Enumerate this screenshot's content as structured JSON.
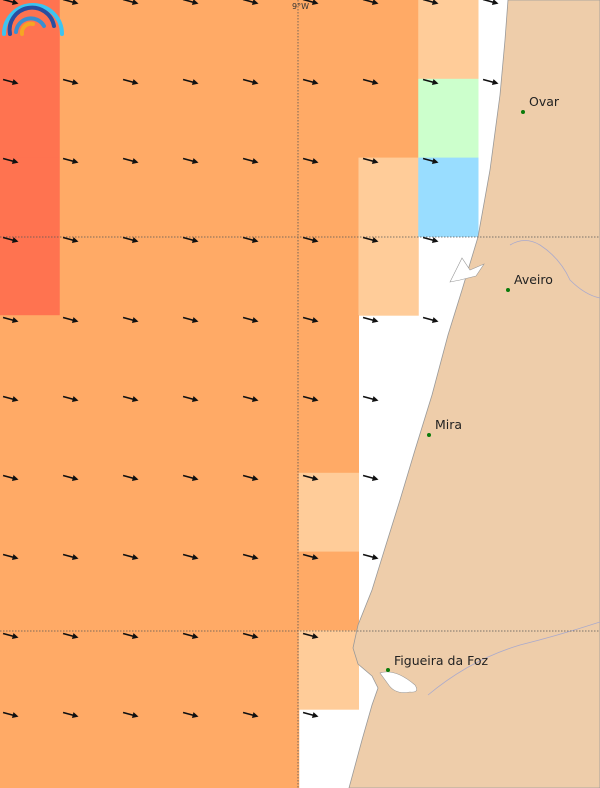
{
  "map": {
    "colors": {
      "R": "#ff7350",
      "O": "#ffaa66",
      "L": "#ffcc99",
      "G": "#ccffcc",
      "B": "#99ddff",
      "W": "#ffffff",
      "land": "#eecdaa",
      "coast": "#999999"
    },
    "grid": [
      "ROOOOOOLWW",
      "ROOOOOOGWW",
      "ROOOOOLBWW",
      "ROOOOOLWWW",
      "OOOOOOWWWW",
      "OOOOOOWWWW",
      "OOOOOLWWWW",
      "OOOOOOWWWW",
      "OOOOOLWWWW",
      "OOOOOWWWWW"
    ],
    "lon_label": "9°W",
    "cities": [
      {
        "name": "Ovar"
      },
      {
        "name": "Aveiro"
      },
      {
        "name": "Mira"
      },
      {
        "name": "Figueira da Foz"
      }
    ]
  }
}
